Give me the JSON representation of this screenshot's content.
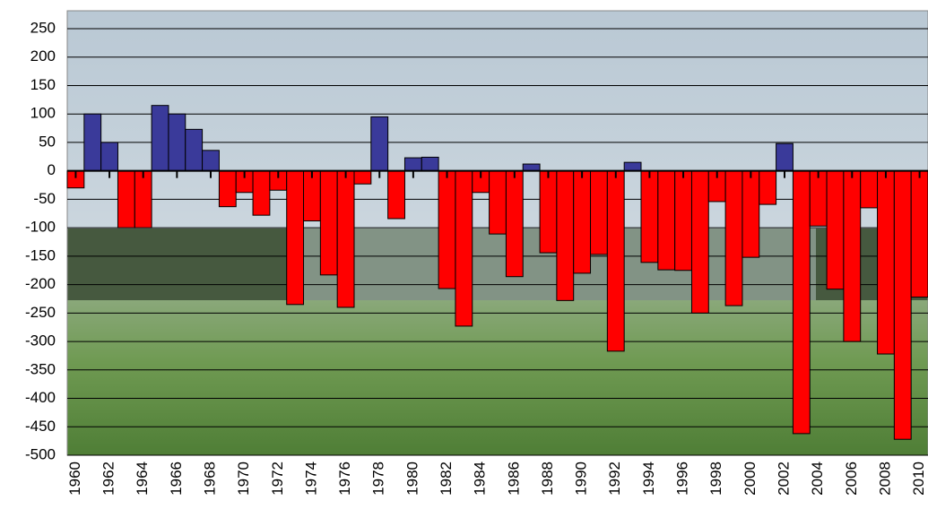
{
  "chart_data": {
    "type": "bar",
    "categories": [
      "1960",
      null,
      "1962",
      null,
      "1964",
      null,
      "1966",
      null,
      "1968",
      null,
      "1970",
      null,
      "1972",
      null,
      "1974",
      null,
      "1976",
      null,
      "1978",
      null,
      "1980",
      null,
      "1982",
      null,
      "1984",
      null,
      "1986",
      null,
      "1988",
      null,
      "1990",
      null,
      "1992",
      null,
      "1994",
      null,
      "1996",
      null,
      "1998",
      null,
      "2000",
      null,
      "2002",
      null,
      "2004",
      null,
      "2006",
      null,
      "2008",
      null,
      "2010"
    ],
    "values": [
      -30,
      100,
      50,
      -100,
      -100,
      115,
      100,
      73,
      36,
      -63,
      -38,
      -78,
      -34,
      -235,
      -88,
      -183,
      -240,
      -23,
      95,
      -84,
      23,
      24,
      -207,
      -273,
      -38,
      -111,
      -186,
      12,
      -144,
      -228,
      -180,
      -147,
      -317,
      15,
      -161,
      -174,
      -175,
      -250,
      -54,
      -237,
      -152,
      -59,
      48,
      -462,
      -97,
      -208,
      -300,
      -65,
      -322,
      -472,
      -222
    ],
    "positive_color": "#3a3a9a",
    "negative_color": "#ff0000",
    "ylim": [
      -500,
      250
    ],
    "yticks": [
      -500,
      -450,
      -400,
      -350,
      -300,
      -250,
      -200,
      -150,
      -100,
      -50,
      0,
      50,
      100,
      150,
      200,
      250
    ],
    "grid": true
  }
}
